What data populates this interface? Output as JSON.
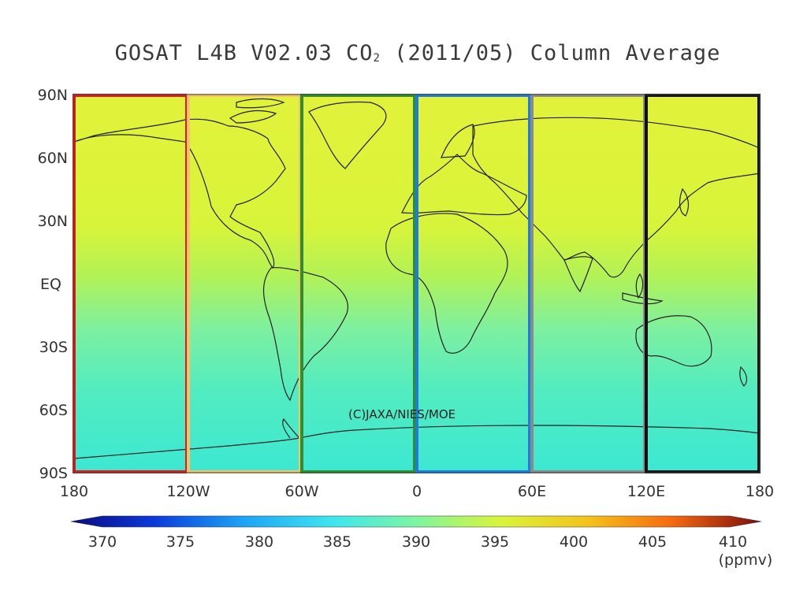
{
  "title": {
    "prefix": "GOSAT L4B V02.03 CO",
    "subscript": "2",
    "suffix": " (2011/05) Column Average"
  },
  "map": {
    "lat_labels": [
      "90N",
      "60N",
      "30N",
      "EQ",
      "30S",
      "60S",
      "90S"
    ],
    "lon_labels": [
      "180",
      "120W",
      "60W",
      "0",
      "60E",
      "120E",
      "180"
    ],
    "watermark": "(C)JAXA/NIES/MOE",
    "region_boxes": [
      {
        "id": "180-120W",
        "color": "#e0191a"
      },
      {
        "id": "120W-60W",
        "color": "#f5c36b"
      },
      {
        "id": "60W-0",
        "color": "#2f8f2f"
      },
      {
        "id": "0-60E",
        "color": "#1e7be0"
      },
      {
        "id": "60E-120E",
        "color": "#8a8a8a"
      },
      {
        "id": "120E-180",
        "color": "#111111"
      }
    ],
    "field_colors": {
      "north": "#e2f23a",
      "mid_north": "#d4f43c",
      "equator": "#a8f25a",
      "south": "#52ecc0",
      "far_south": "#3ce8d2"
    }
  },
  "colorbar": {
    "ticks": [
      "370",
      "375",
      "380",
      "385",
      "390",
      "395",
      "400",
      "405",
      "410"
    ],
    "unit": "(ppmv)",
    "min": 370,
    "max": 410,
    "stops": [
      "#0a0a80",
      "#0b3ad9",
      "#1da4f5",
      "#3fe6f0",
      "#7ef5a0",
      "#d8f53a",
      "#f5c21a",
      "#f56a10",
      "#d01010",
      "#7a0d0d"
    ]
  }
}
